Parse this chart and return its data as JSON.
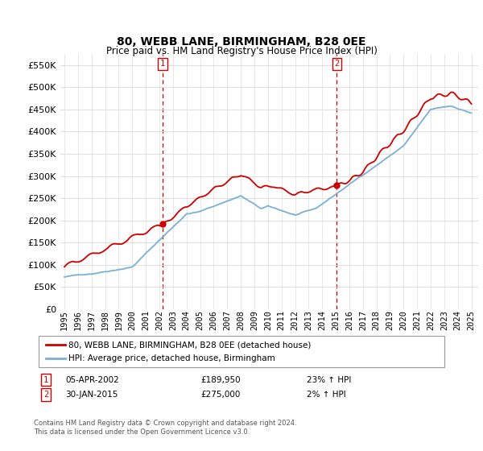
{
  "title": "80, WEBB LANE, BIRMINGHAM, B28 0EE",
  "subtitle": "Price paid vs. HM Land Registry's House Price Index (HPI)",
  "legend_line1": "80, WEBB LANE, BIRMINGHAM, B28 0EE (detached house)",
  "legend_line2": "HPI: Average price, detached house, Birmingham",
  "annotation1_label": "1",
  "annotation1_date": "05-APR-2002",
  "annotation1_price": "£189,950",
  "annotation1_hpi": "23% ↑ HPI",
  "annotation1_year": 2002.25,
  "annotation2_label": "2",
  "annotation2_date": "30-JAN-2015",
  "annotation2_price": "£275,000",
  "annotation2_hpi": "2% ↑ HPI",
  "annotation2_year": 2015.08,
  "footer1": "Contains HM Land Registry data © Crown copyright and database right 2024.",
  "footer2": "This data is licensed under the Open Government Licence v3.0.",
  "ylim": [
    0,
    575000
  ],
  "yticks": [
    0,
    50000,
    100000,
    150000,
    200000,
    250000,
    300000,
    350000,
    400000,
    450000,
    500000,
    550000
  ],
  "red_color": "#cc0000",
  "blue_color": "#7ab0d4",
  "background_color": "#ffffff",
  "grid_color": "#dddddd",
  "xlim_left": 1994.7,
  "xlim_right": 2025.5
}
